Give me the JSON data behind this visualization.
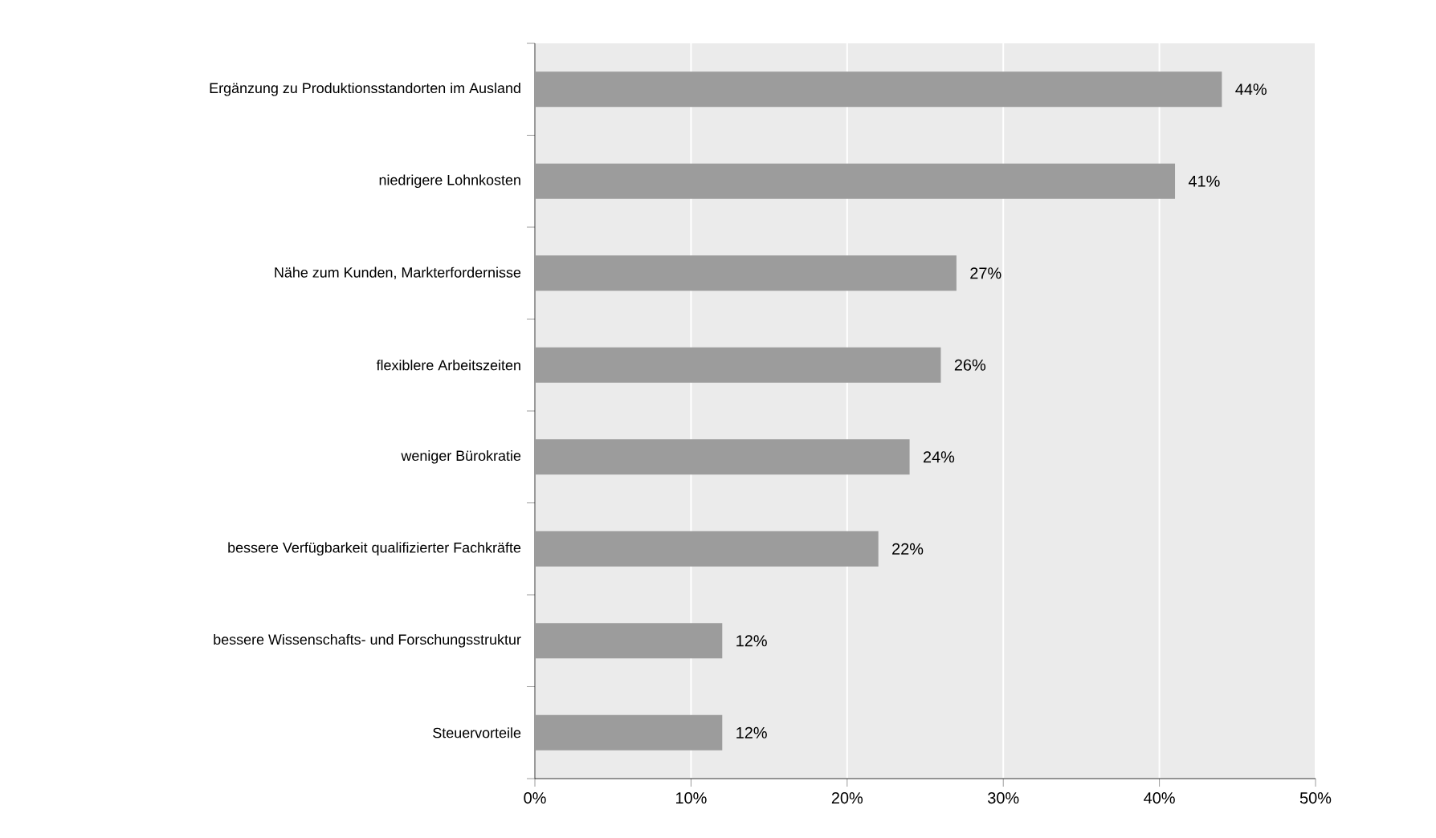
{
  "chart_data": {
    "type": "bar",
    "orientation": "horizontal",
    "categories": [
      "Ergänzung zu Produktionsstandorten im Ausland",
      "niedrigere Lohnkosten",
      "Nähe zum Kunden, Markterfordernisse",
      "flexiblere Arbeitszeiten",
      "weniger Bürokratie",
      "bessere Verfügbarkeit qualifizierter Fachkräfte",
      "bessere Wissenschafts- und Forschungsstruktur",
      "Steuervorteile"
    ],
    "values": [
      44,
      41,
      27,
      26,
      24,
      22,
      12,
      12
    ],
    "value_labels": [
      "44%",
      "41%",
      "27%",
      "26%",
      "24%",
      "22%",
      "12%",
      "12%"
    ],
    "color": "#9c9c9c",
    "xlim": [
      0,
      50
    ],
    "xticks": [
      {
        "value": 0,
        "label": "0%"
      },
      {
        "value": 10,
        "label": "10%"
      },
      {
        "value": 20,
        "label": "20%"
      },
      {
        "value": 30,
        "label": "30%"
      },
      {
        "value": 40,
        "label": "40%"
      },
      {
        "value": 50,
        "label": "50%"
      }
    ],
    "grid": "x"
  }
}
